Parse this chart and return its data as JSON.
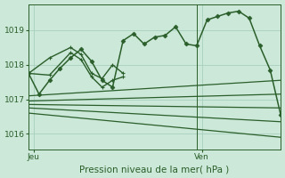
{
  "bg_color": "#cce8d8",
  "grid_color": "#a8cfc0",
  "line_color": "#2a5e2a",
  "title": "Pression niveau de la mer( hPa )",
  "xlabel_jeu": "Jeu",
  "xlabel_ven": "Ven",
  "ylim": [
    1015.55,
    1019.75
  ],
  "yticks": [
    1016,
    1017,
    1018,
    1019
  ],
  "xlim": [
    0,
    24
  ],
  "vline_x": 16,
  "jeu_x": 0.5,
  "ven_x": 16.5,
  "main_series": {
    "x": [
      0,
      1,
      2,
      3,
      4,
      5,
      6,
      7,
      8,
      9,
      10,
      11,
      12,
      13,
      14,
      15,
      16,
      17,
      18,
      19,
      20,
      21,
      22,
      23,
      24
    ],
    "y": [
      1017.75,
      1017.15,
      1017.55,
      1017.9,
      1018.2,
      1018.45,
      1018.1,
      1017.55,
      1017.35,
      1018.7,
      1018.9,
      1018.6,
      1018.8,
      1018.85,
      1019.1,
      1018.6,
      1018.55,
      1019.3,
      1019.4,
      1019.5,
      1019.55,
      1019.35,
      1018.55,
      1017.85,
      1016.55
    ]
  },
  "fan_lines": [
    {
      "x": [
        0,
        24
      ],
      "y": [
        1017.1,
        1017.55
      ]
    },
    {
      "x": [
        0,
        24
      ],
      "y": [
        1016.95,
        1017.15
      ]
    },
    {
      "x": [
        0,
        24
      ],
      "y": [
        1016.85,
        1016.75
      ]
    },
    {
      "x": [
        0,
        24
      ],
      "y": [
        1016.75,
        1016.35
      ]
    },
    {
      "x": [
        0,
        24
      ],
      "y": [
        1016.6,
        1015.9
      ]
    }
  ],
  "extra_series": [
    {
      "x": [
        0,
        2,
        4,
        5,
        6,
        7,
        8,
        9
      ],
      "y": [
        1017.75,
        1017.7,
        1018.35,
        1018.15,
        1017.65,
        1017.35,
        1017.55,
        1017.65
      ],
      "marker": "+"
    },
    {
      "x": [
        0,
        2,
        4,
        5,
        6,
        7,
        8,
        9
      ],
      "y": [
        1017.75,
        1018.2,
        1018.5,
        1018.3,
        1017.75,
        1017.6,
        1018.0,
        1017.75
      ],
      "marker": "+"
    }
  ]
}
